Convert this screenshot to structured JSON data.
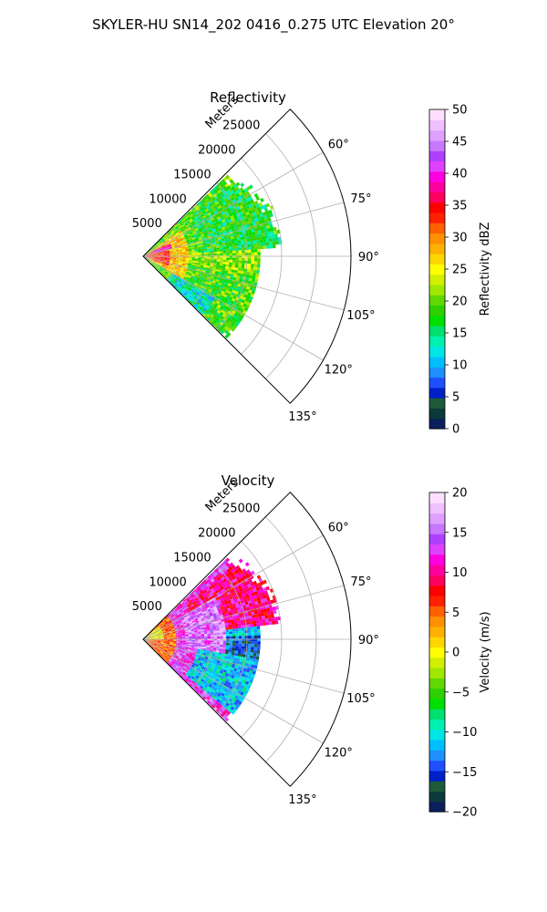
{
  "figure": {
    "suptitle": "SKYLER-HU  SN14_202  0416_0.275 UTC Elevation 20°"
  },
  "chart_data": [
    {
      "type": "heatmap",
      "subtype": "polar-sector",
      "title": "Reflectivity",
      "range_label": "Meters",
      "theta_ticks": [
        60,
        75,
        90,
        105,
        120,
        135
      ],
      "theta_tick_labels": [
        "60°",
        "75°",
        "90°",
        "105°",
        "120°",
        "135°"
      ],
      "theta_range": [
        45,
        135
      ],
      "r_ticks": [
        5000,
        10000,
        15000,
        20000,
        25000
      ],
      "r_tick_labels": [
        "5000",
        "10000",
        "15000",
        "20000",
        "25000"
      ],
      "r_max": 30000,
      "grid": true,
      "data_extent_r": [
        0,
        20000
      ],
      "colorbar": {
        "label": "Reflectivity dBZ",
        "range": [
          0,
          50
        ],
        "ticks": [
          0,
          5,
          10,
          15,
          20,
          25,
          30,
          35,
          40,
          45,
          50
        ],
        "tick_labels": [
          "0",
          "5",
          "10",
          "15",
          "20",
          "25",
          "30",
          "35",
          "40",
          "45",
          "50"
        ],
        "colors": [
          "#0a1f5c",
          "#0a3a3a",
          "#1e5a3a",
          "#0020c8",
          "#1e50ff",
          "#1e90ff",
          "#00bfff",
          "#00e5e5",
          "#00f0b0",
          "#00e070",
          "#00e000",
          "#30d000",
          "#60d800",
          "#a0e800",
          "#d0f000",
          "#ffff00",
          "#ffd700",
          "#ffb000",
          "#ff9000",
          "#ff6000",
          "#ff2000",
          "#ff0000",
          "#ff0060",
          "#ff00a0",
          "#ff00e0",
          "#e040ff",
          "#b040ff",
          "#c878ff",
          "#e0a0ff",
          "#f0c0ff",
          "#fde0ff"
        ]
      },
      "regions": [
        {
          "theta": [
            46,
            134
          ],
          "r": [
            0,
            17000
          ],
          "value": 19
        },
        {
          "theta": [
            50,
            86
          ],
          "r": [
            9000,
            20000
          ],
          "value": 17
        },
        {
          "theta": [
            86,
            100
          ],
          "r": [
            0,
            16500
          ],
          "value": 21
        },
        {
          "theta": [
            55,
            120
          ],
          "r": [
            0,
            6500
          ],
          "value": 27
        },
        {
          "theta": [
            62,
            110
          ],
          "r": [
            0,
            4000
          ],
          "value": 33
        },
        {
          "theta": [
            66,
            76
          ],
          "r": [
            1500,
            4500
          ],
          "value": 40
        },
        {
          "theta": [
            120,
            134
          ],
          "r": [
            5000,
            12000
          ],
          "value": 13
        }
      ]
    },
    {
      "type": "heatmap",
      "subtype": "polar-sector",
      "title": "Velocity",
      "range_label": "Meters",
      "theta_ticks": [
        60,
        75,
        90,
        105,
        120,
        135
      ],
      "theta_tick_labels": [
        "60°",
        "75°",
        "90°",
        "105°",
        "120°",
        "135°"
      ],
      "theta_range": [
        45,
        135
      ],
      "r_ticks": [
        5000,
        10000,
        15000,
        20000,
        25000
      ],
      "r_tick_labels": [
        "5000",
        "10000",
        "15000",
        "20000",
        "25000"
      ],
      "r_max": 30000,
      "grid": true,
      "data_extent_r": [
        0,
        20000
      ],
      "colorbar": {
        "label": "Velocity (m/s)",
        "range": [
          -20,
          20
        ],
        "ticks": [
          -20,
          -15,
          -10,
          -5,
          0,
          5,
          10,
          15,
          20
        ],
        "tick_labels": [
          "−20",
          "−15",
          "−10",
          "−5",
          "0",
          "5",
          "10",
          "15",
          "20"
        ],
        "colors": [
          "#0a1f5c",
          "#0a3a3a",
          "#1e5a3a",
          "#0020c8",
          "#1e50ff",
          "#1e90ff",
          "#00bfff",
          "#00e5e5",
          "#00f0b0",
          "#00e070",
          "#00e000",
          "#30d000",
          "#60d800",
          "#a0e800",
          "#d0f000",
          "#ffff00",
          "#ffd700",
          "#ffb000",
          "#ff9000",
          "#ff6000",
          "#ff2000",
          "#ff0000",
          "#ff0060",
          "#ff00a0",
          "#ff00e0",
          "#e040ff",
          "#b040ff",
          "#c878ff",
          "#e0a0ff",
          "#f0c0ff",
          "#fde0ff"
        ]
      },
      "regions": [
        {
          "theta": [
            46,
            134
          ],
          "r": [
            0,
            17000
          ],
          "value": 13
        },
        {
          "theta": [
            50,
            84
          ],
          "r": [
            8000,
            20000
          ],
          "value": 10
        },
        {
          "theta": [
            84,
            130
          ],
          "r": [
            8000,
            17000
          ],
          "value": -11
        },
        {
          "theta": [
            88,
            100
          ],
          "r": [
            12000,
            17000
          ],
          "value": -15
        },
        {
          "theta": [
            60,
            100
          ],
          "r": [
            6000,
            12000
          ],
          "value": 15
        },
        {
          "theta": [
            46,
            134
          ],
          "r": [
            0,
            5000
          ],
          "value": 5
        },
        {
          "theta": [
            50,
            90
          ],
          "r": [
            0,
            3000
          ],
          "value": 0
        }
      ]
    }
  ]
}
